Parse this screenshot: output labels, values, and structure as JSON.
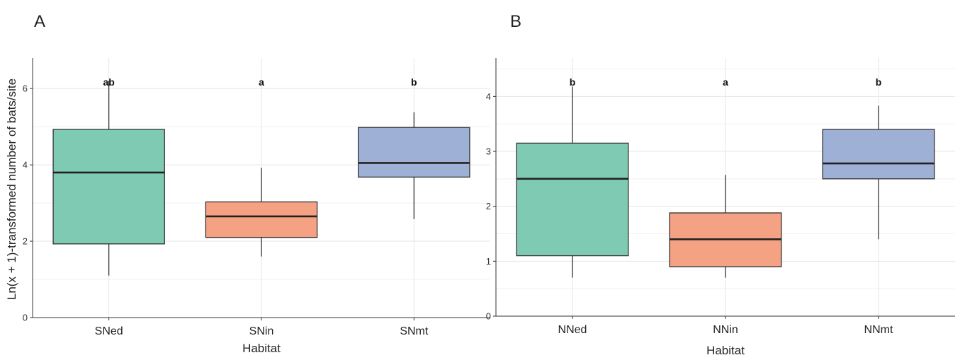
{
  "chart_data": [
    {
      "type": "box",
      "panel_label": "A",
      "xlabel": "Habitat",
      "ylabel": "Ln(x + 1)-transformed number of bats/site",
      "ylim": [
        0,
        6.8
      ],
      "yticks": [
        0,
        2,
        4,
        6
      ],
      "grid": true,
      "categories": [
        "SNed",
        "SNin",
        "SNmt"
      ],
      "significance": [
        "ab",
        "a",
        "b"
      ],
      "boxes": [
        {
          "category": "SNed",
          "min": 1.1,
          "q1": 1.93,
          "median": 3.8,
          "q3": 4.93,
          "max": 6.2,
          "color": "#7FCAB3"
        },
        {
          "category": "SNin",
          "min": 1.6,
          "q1": 2.1,
          "median": 2.65,
          "q3": 3.03,
          "max": 3.92,
          "color": "#F4A283"
        },
        {
          "category": "SNmt",
          "min": 2.58,
          "q1": 3.68,
          "median": 4.05,
          "q3": 4.98,
          "max": 5.38,
          "color": "#9FB0D7"
        }
      ]
    },
    {
      "type": "box",
      "panel_label": "B",
      "xlabel": "Habitat",
      "ylabel": "",
      "ylim": [
        0,
        4.7
      ],
      "yticks": [
        0,
        1,
        2,
        3,
        4
      ],
      "grid": true,
      "categories": [
        "NNed",
        "NNin",
        "NNmt"
      ],
      "significance": [
        "b",
        "a",
        "b"
      ],
      "boxes": [
        {
          "category": "NNed",
          "min": 0.7,
          "q1": 1.1,
          "median": 2.5,
          "q3": 3.15,
          "max": 4.18,
          "color": "#7FCAB3"
        },
        {
          "category": "NNin",
          "min": 0.7,
          "q1": 0.9,
          "median": 1.4,
          "q3": 1.88,
          "max": 2.57,
          "color": "#F4A283"
        },
        {
          "category": "NNmt",
          "min": 1.4,
          "q1": 2.5,
          "median": 2.78,
          "q3": 3.4,
          "max": 3.83,
          "color": "#9FB0D7"
        }
      ]
    }
  ]
}
